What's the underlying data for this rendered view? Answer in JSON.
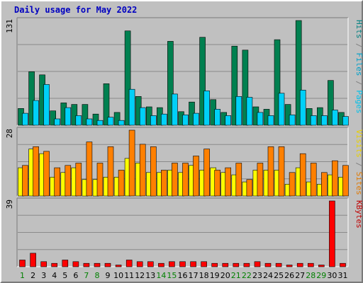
{
  "chart_data": [
    {
      "type": "bar",
      "title": "Daily usage for May 2022",
      "ymax_label": "131",
      "right_label": [
        {
          "text": "Hits",
          "color": "#008080"
        },
        {
          "text": " / ",
          "color": "#808080"
        },
        {
          "text": "Files",
          "color": "#00a0c8"
        },
        {
          "text": " / ",
          "color": "#808080"
        },
        {
          "text": "Pages",
          "color": "#00c0e8"
        }
      ],
      "categories": [
        "1",
        "2",
        "3",
        "4",
        "5",
        "6",
        "7",
        "8",
        "9",
        "10",
        "11",
        "12",
        "13",
        "14",
        "15",
        "16",
        "17",
        "18",
        "19",
        "20",
        "21",
        "22",
        "23",
        "24",
        "25",
        "26",
        "27",
        "28",
        "29",
        "30",
        "31"
      ],
      "weekend_days": [
        "1",
        "7",
        "8",
        "14",
        "15",
        "21",
        "22",
        "28",
        "29"
      ],
      "series": [
        {
          "name": "Hits",
          "color": "#008050",
          "values": [
            21,
            67,
            63,
            18,
            28,
            26,
            26,
            14,
            52,
            16,
            118,
            36,
            23,
            22,
            105,
            17,
            29,
            110,
            32,
            16,
            99,
            94,
            23,
            20,
            107,
            26,
            131,
            21,
            22,
            56,
            16
          ]
        },
        {
          "name": "Files",
          "color": "#00d0f8",
          "values": [
            15,
            31,
            51,
            8,
            22,
            12,
            8,
            6,
            10,
            6,
            45,
            22,
            12,
            14,
            39,
            13,
            15,
            43,
            20,
            12,
            36,
            35,
            16,
            12,
            40,
            13,
            44,
            12,
            12,
            19,
            11
          ]
        },
        {
          "name": "Pages",
          "color": "#00e8f8",
          "values": [
            4,
            1,
            1,
            1,
            1,
            1,
            1,
            1,
            1,
            1,
            1,
            1,
            1,
            1,
            1,
            1,
            1,
            1,
            1,
            1,
            1,
            1,
            1,
            1,
            1,
            1,
            1,
            1,
            1,
            1,
            1
          ]
        }
      ]
    },
    {
      "type": "bar",
      "ymax_label": "28",
      "right_label": [
        {
          "text": "Visits",
          "color": "#e8d000"
        },
        {
          "text": " / ",
          "color": "#808080"
        },
        {
          "text": "Sites",
          "color": "#e07800"
        }
      ],
      "series": [
        {
          "name": "Visits",
          "color": "#ffff00",
          "values": [
            12,
            20,
            18,
            8,
            10,
            12,
            7,
            7,
            8,
            8,
            16,
            14,
            10,
            10,
            11,
            10,
            13,
            11,
            12,
            10,
            9,
            6,
            11,
            11,
            11,
            5,
            12,
            6,
            5,
            9,
            8
          ]
        },
        {
          "name": "Sites",
          "color": "#ff8000",
          "values": [
            13,
            21,
            19,
            12,
            13,
            14,
            23,
            14,
            21,
            11,
            28,
            22,
            21,
            11,
            14,
            14,
            17,
            20,
            11,
            12,
            14,
            7,
            14,
            21,
            21,
            10,
            18,
            14,
            10,
            15,
            13
          ]
        }
      ]
    },
    {
      "type": "bar",
      "ymax_label": "39",
      "right_label": [
        {
          "text": "KBytes",
          "color": "#c00000"
        }
      ],
      "series": [
        {
          "name": "KBytes",
          "color": "#ff0000",
          "values": [
            4,
            8,
            3,
            2,
            4,
            3,
            2,
            2,
            2,
            1,
            4,
            3,
            3,
            2,
            3,
            3,
            3,
            3,
            2,
            2,
            2,
            2,
            3,
            2,
            2,
            1,
            2,
            2,
            1,
            39,
            2
          ]
        }
      ]
    }
  ]
}
